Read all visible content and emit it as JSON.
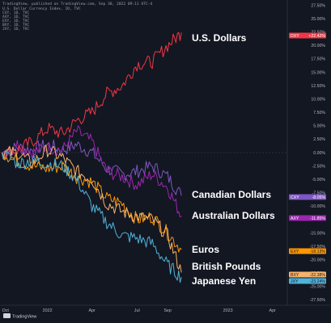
{
  "header": {
    "published_by": "TradingView, published on TradingView.com, Sep 30, 2022 09:11 UTC-4",
    "series_line": "U.S. Dollar Currency Index, 1D, TVC",
    "symbols": [
      "CXY, 1D, TVC",
      "AXY, 1D, TVC",
      "EXY, 1D, TVC",
      "BXY, 1D, TVC",
      "JXY, 1D, TVC"
    ]
  },
  "footer": {
    "brand": "TradingView"
  },
  "colors": {
    "background": "#131722",
    "grid": "#1f2431",
    "axis_text": "#b2b5be",
    "dollars": "#f23645",
    "canadian": "#7e57c2",
    "australian": "#9c27b0",
    "euros": "#ff9800",
    "pounds": "#f7b36b",
    "yen": "#4fb3d9"
  },
  "chart_data": {
    "type": "line",
    "x": [
      "2021-10-01",
      "2021-11-01",
      "2021-12-01",
      "2022-01-01",
      "2022-02-01",
      "2022-03-01",
      "2022-04-01",
      "2022-05-01",
      "2022-06-01",
      "2022-07-01",
      "2022-08-01",
      "2022-09-01",
      "2022-09-29"
    ],
    "xlim": [
      "2021-09-27",
      "2023-05-01"
    ],
    "x_ticks": [
      {
        "date": "2021-10-01",
        "label": "Oct"
      },
      {
        "date": "2022-01-01",
        "label": "2022"
      },
      {
        "date": "2022-04-01",
        "label": "Apr"
      },
      {
        "date": "2022-07-01",
        "label": "Jul"
      },
      {
        "date": "2022-09-01",
        "label": "Sep"
      },
      {
        "date": "2023-01-01",
        "label": "2023"
      },
      {
        "date": "2023-04-01",
        "label": "Apr"
      }
    ],
    "ylim": [
      -28.5,
      28.5
    ],
    "y_ticks": [
      27.5,
      25,
      22.5,
      20,
      17.5,
      15,
      12.5,
      10,
      7.5,
      5,
      2.5,
      0,
      -2.5,
      -5,
      -7.5,
      -10,
      -12.5,
      -15,
      -17.5,
      -20,
      -22.5,
      -25,
      -27.5
    ],
    "y_tick_labels": [
      "27.50%",
      "25.00%",
      "22.50%",
      "20.00%",
      "17.50%",
      "15.00%",
      "12.50%",
      "10.00%",
      "7.50%",
      "5.00%",
      "2.50%",
      "0.00%",
      "-2.50%",
      "-5.00%",
      "-7.50%",
      "-10.00%",
      "-12.50%",
      "-15.00%",
      "-17.50%",
      "-20.00%",
      "-22.50%",
      "-25.00%",
      "-27.50%"
    ],
    "grid": false,
    "series": [
      {
        "name": "U.S. Dollars",
        "symbol": "DXY",
        "last_label": "+22.42%",
        "color": "#f23645",
        "values": [
          0,
          0.5,
          2.0,
          4.5,
          3.5,
          6.0,
          7.5,
          11.0,
          12.5,
          16.5,
          17.0,
          20.0,
          22.42
        ]
      },
      {
        "name": "Canadian Dollars",
        "symbol": "CXY",
        "last_label": "-8.05%",
        "color": "#7e57c2",
        "values": [
          0,
          1.0,
          0.5,
          1.5,
          0.5,
          1.5,
          0,
          -3.0,
          -4.0,
          -3.5,
          -2.5,
          -4.5,
          -8.05
        ]
      },
      {
        "name": "Australian Dollars",
        "symbol": "AXY",
        "last_label": "-11.85%",
        "color": "#9c27b0",
        "values": [
          0,
          1.5,
          0,
          1.0,
          0.5,
          4.0,
          2.0,
          -3.5,
          -4.5,
          -6.0,
          -4.0,
          -6.5,
          -11.85
        ]
      },
      {
        "name": "Euros",
        "symbol": "EXY",
        "last_label": "-18.13%",
        "color": "#ff9800",
        "values": [
          0,
          -1.5,
          -2.5,
          -3.0,
          -2.5,
          -4.5,
          -5.5,
          -8.5,
          -9.5,
          -12.5,
          -12.0,
          -15.0,
          -18.13
        ]
      },
      {
        "name": "British Pounds",
        "symbol": "BXY",
        "last_label": "-22.38%",
        "color": "#f7b36b",
        "values": [
          0,
          0,
          -2.0,
          0.5,
          -1.0,
          -3.5,
          -5.0,
          -9.5,
          -11.0,
          -12.0,
          -12.5,
          -15.5,
          -22.38
        ]
      },
      {
        "name": "Japanese Yen",
        "symbol": "JXY",
        "last_label": "-23.24%",
        "color": "#4fb3d9",
        "values": [
          0,
          -2.0,
          -1.5,
          -2.0,
          -2.5,
          -5.0,
          -10.0,
          -13.0,
          -15.5,
          -16.0,
          -17.0,
          -21.0,
          -23.24
        ]
      }
    ]
  }
}
